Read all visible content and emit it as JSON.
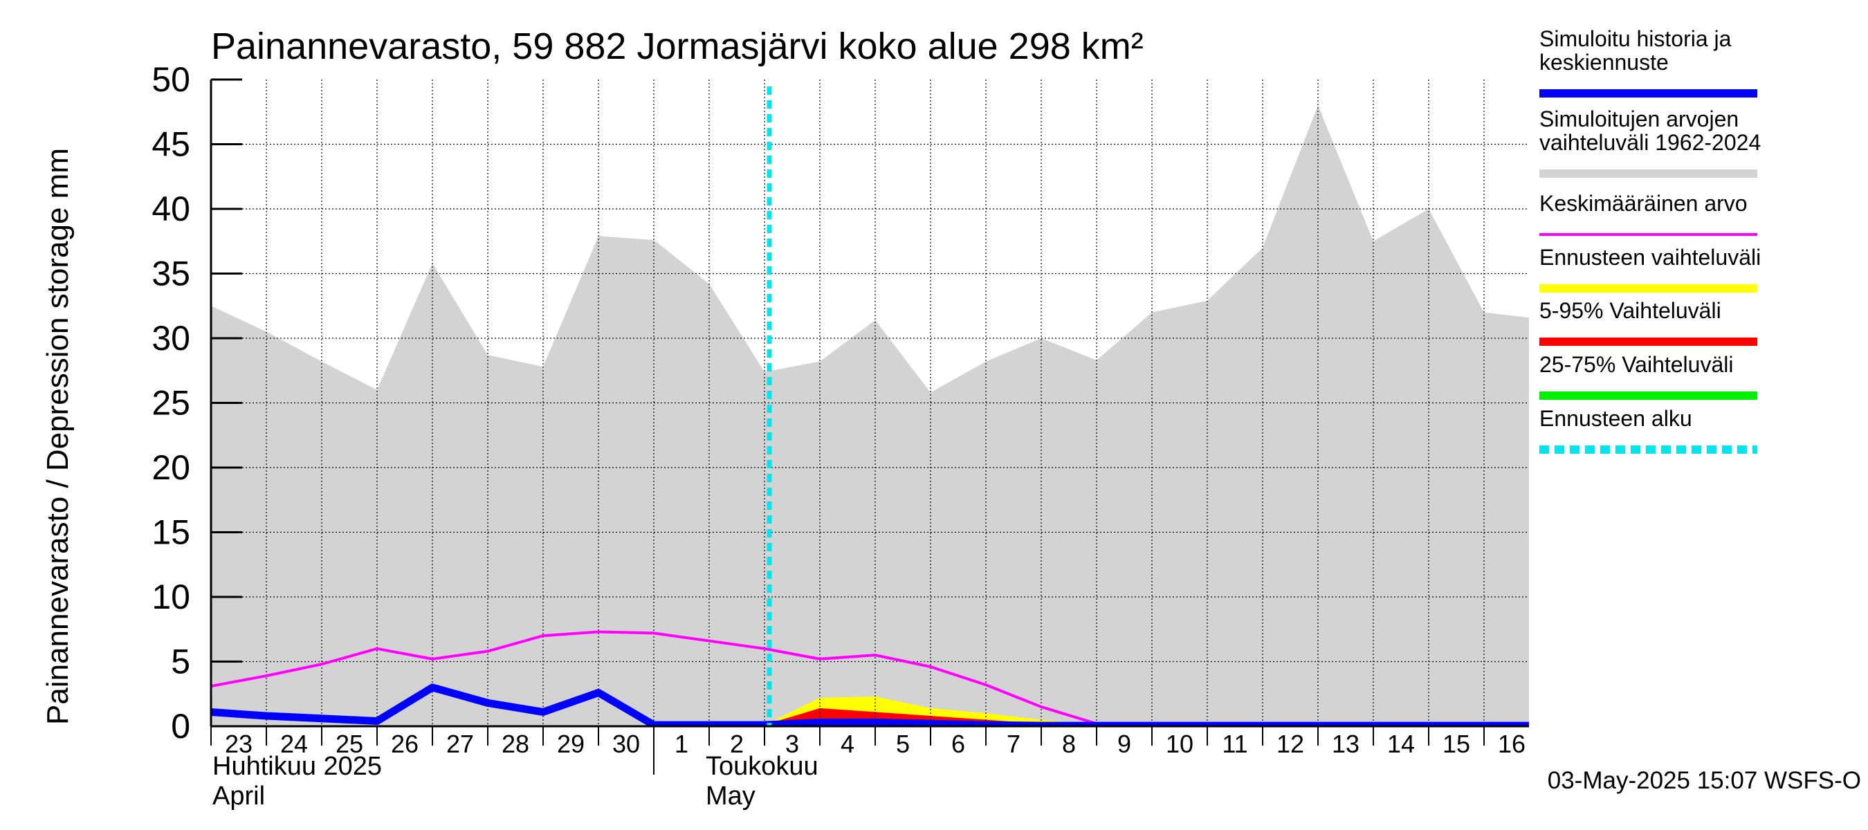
{
  "chart_data": {
    "type": "area",
    "title": "Painannevarasto, 59 882 Jormasjärvi koko alue 298 km²",
    "ylabel": "Painannevarasto / Depression storage    mm",
    "ylim": [
      0,
      50
    ],
    "yticks": [
      0,
      5,
      10,
      15,
      20,
      25,
      30,
      35,
      40,
      45,
      50
    ],
    "grid": true,
    "legend_position": "right",
    "x": [
      "23",
      "24",
      "25",
      "26",
      "27",
      "28",
      "29",
      "30",
      "1",
      "2",
      "3",
      "4",
      "5",
      "6",
      "7",
      "8",
      "9",
      "10",
      "11",
      "12",
      "13",
      "14",
      "15",
      "16"
    ],
    "x_dates": [
      "2025-04-23",
      "2025-04-24",
      "2025-04-25",
      "2025-04-26",
      "2025-04-27",
      "2025-04-28",
      "2025-04-29",
      "2025-04-30",
      "2025-05-01",
      "2025-05-02",
      "2025-05-03",
      "2025-05-04",
      "2025-05-05",
      "2025-05-06",
      "2025-05-07",
      "2025-05-08",
      "2025-05-09",
      "2025-05-10",
      "2025-05-11",
      "2025-05-12",
      "2025-05-13",
      "2025-05-14",
      "2025-05-15",
      "2025-05-16"
    ],
    "month_labels": [
      {
        "line1": "Huhtikuu  2025",
        "line2": "April"
      },
      {
        "line1": "Toukokuu",
        "line2": "May"
      }
    ],
    "forecast_start": "2025-05-03",
    "series": [
      {
        "name": "Simuloitujen arvojen vaihteluväli 1962-2024",
        "kind": "range",
        "color": "#d3d3d3",
        "x": [
          "2025-04-22",
          "2025-04-23",
          "2025-04-24",
          "2025-04-25",
          "2025-04-26",
          "2025-04-27",
          "2025-04-28",
          "2025-04-29",
          "2025-04-30",
          "2025-05-01",
          "2025-05-02",
          "2025-05-03",
          "2025-05-04",
          "2025-05-05",
          "2025-05-06",
          "2025-05-07",
          "2025-05-08",
          "2025-05-09",
          "2025-05-10",
          "2025-05-11",
          "2025-05-12",
          "2025-05-13",
          "2025-05-14",
          "2025-05-15",
          "2025-05-16",
          "2025-05-17"
        ],
        "upper": [
          30.0,
          32.5,
          30.5,
          28.2,
          26.0,
          35.8,
          28.7,
          27.8,
          37.9,
          37.6,
          34.2,
          27.4,
          28.2,
          31.4,
          25.8,
          28.2,
          30.0,
          28.3,
          32.0,
          32.9,
          37.0,
          48.0,
          37.5,
          40.0,
          32.0,
          31.5
        ],
        "lower": [
          0,
          0,
          0,
          0,
          0,
          0,
          0,
          0,
          0,
          0,
          0,
          0,
          0,
          0,
          0,
          0,
          0,
          0,
          0,
          0,
          0,
          0,
          0,
          0,
          0,
          0
        ]
      },
      {
        "name": "Keskimääräinen arvo",
        "kind": "line",
        "color": "#ff00ff",
        "x": [
          "2025-04-22",
          "2025-04-23",
          "2025-04-24",
          "2025-04-25",
          "2025-04-26",
          "2025-04-27",
          "2025-04-28",
          "2025-04-29",
          "2025-04-30",
          "2025-05-01",
          "2025-05-02",
          "2025-05-03",
          "2025-05-04",
          "2025-05-05",
          "2025-05-06",
          "2025-05-07",
          "2025-05-08",
          "2025-05-09",
          "2025-05-10",
          "2025-05-11",
          "2025-05-12",
          "2025-05-13",
          "2025-05-14",
          "2025-05-15",
          "2025-05-16",
          "2025-05-17"
        ],
        "values": [
          3.4,
          3.1,
          3.9,
          4.8,
          6.0,
          5.2,
          5.8,
          7.0,
          7.3,
          7.2,
          6.6,
          6.0,
          5.2,
          5.5,
          4.6,
          3.2,
          1.5,
          0.2,
          0.2,
          0.2,
          0.2,
          0.2,
          0.2,
          0.2,
          0.2,
          0.2
        ]
      },
      {
        "name": "Ennusteen vaihteluväli",
        "kind": "range",
        "color": "#ffff00",
        "x": [
          "2025-05-03",
          "2025-05-04",
          "2025-05-05",
          "2025-05-06",
          "2025-05-07",
          "2025-05-08",
          "2025-05-09",
          "2025-05-10"
        ],
        "upper": [
          0.1,
          2.2,
          2.3,
          1.4,
          1.0,
          0.5,
          0.1,
          0.0
        ],
        "lower": [
          0,
          0,
          0,
          0,
          0,
          0,
          0,
          0
        ]
      },
      {
        "name": "5-95% Vaihteluväli",
        "kind": "range",
        "color": "#ff0000",
        "x": [
          "2025-05-03",
          "2025-05-04",
          "2025-05-05",
          "2025-05-06",
          "2025-05-07",
          "2025-05-08",
          "2025-05-09",
          "2025-05-10"
        ],
        "upper": [
          0.1,
          1.4,
          1.1,
          0.8,
          0.5,
          0.2,
          0.05,
          0.0
        ],
        "lower": [
          0,
          0,
          0,
          0,
          0,
          0,
          0,
          0
        ]
      },
      {
        "name": "25-75% Vaihteluväli",
        "kind": "range",
        "color": "#00ee00",
        "x": [
          "2025-05-03",
          "2025-05-04",
          "2025-05-05",
          "2025-05-06",
          "2025-05-07",
          "2025-05-08",
          "2025-05-09",
          "2025-05-10"
        ],
        "upper": [
          0.05,
          0.5,
          0.5,
          0.3,
          0.2,
          0.1,
          0.0,
          0.0
        ],
        "lower": [
          0,
          0,
          0,
          0,
          0,
          0,
          0,
          0
        ]
      },
      {
        "name": "Simuloitu historia ja keskiennuste",
        "kind": "line",
        "color": "#0000ff",
        "x": [
          "2025-04-22",
          "2025-04-23",
          "2025-04-24",
          "2025-04-25",
          "2025-04-26",
          "2025-04-27",
          "2025-04-28",
          "2025-04-29",
          "2025-04-30",
          "2025-05-01",
          "2025-05-02",
          "2025-05-03",
          "2025-05-04",
          "2025-05-05",
          "2025-05-06",
          "2025-05-07",
          "2025-05-08",
          "2025-05-09",
          "2025-05-10",
          "2025-05-11",
          "2025-05-12",
          "2025-05-13",
          "2025-05-14",
          "2025-05-15",
          "2025-05-16",
          "2025-05-17"
        ],
        "values": [
          1.6,
          1.1,
          0.8,
          0.6,
          0.4,
          3.0,
          1.8,
          1.1,
          2.6,
          0.1,
          0.1,
          0.1,
          0.3,
          0.3,
          0.2,
          0.1,
          0.05,
          0.05,
          0.05,
          0.05,
          0.05,
          0.05,
          0.05,
          0.05,
          0.05,
          0.05
        ]
      }
    ]
  },
  "legend": [
    {
      "label": "Simuloitu historia ja keskiennuste",
      "color": "#0000ff",
      "style": "solid"
    },
    {
      "label": "Simuloitujen arvojen vaihteluväli 1962-2024",
      "color": "#d3d3d3",
      "style": "solid"
    },
    {
      "label": "Keskimääräinen arvo",
      "color": "#ff00ff",
      "style": "thin"
    },
    {
      "label": "Ennusteen vaihteluväli",
      "color": "#ffff00",
      "style": "solid"
    },
    {
      "label": "5-95% Vaihteluväli",
      "color": "#ff0000",
      "style": "solid"
    },
    {
      "label": "25-75% Vaihteluväli",
      "color": "#00ee00",
      "style": "solid"
    },
    {
      "label": "Ennusteen alku",
      "color": "#00e5ee",
      "style": "dashed"
    }
  ],
  "timestamp": "03-May-2025 15:07 WSFS-O"
}
